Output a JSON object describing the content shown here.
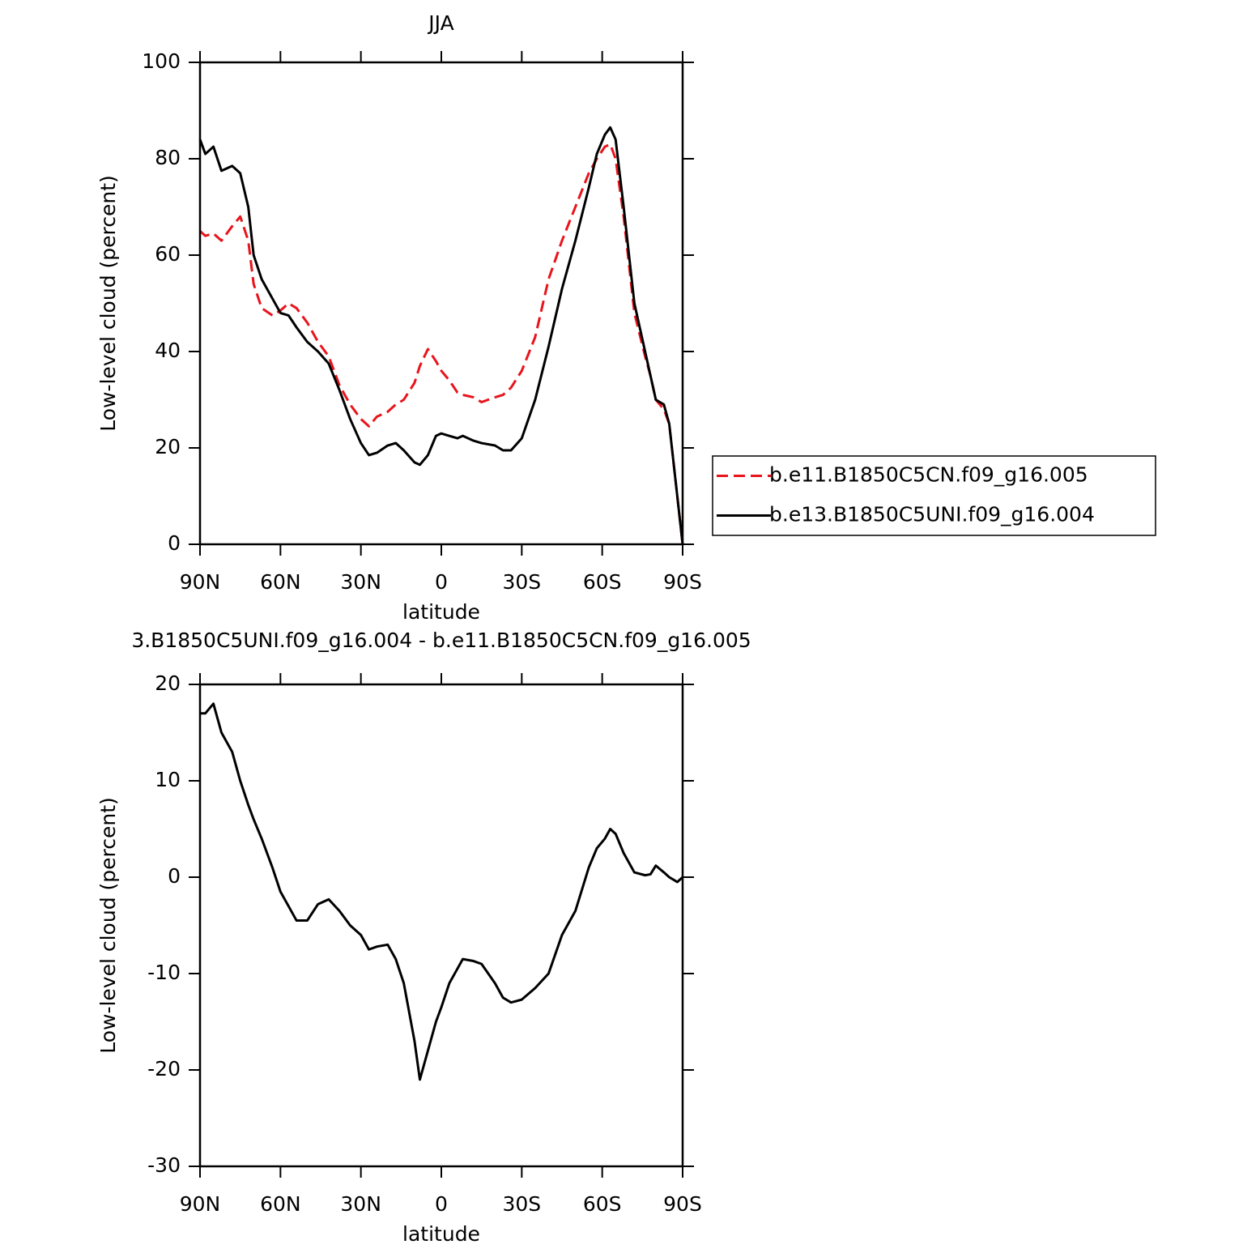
{
  "chart_data": [
    {
      "type": "line",
      "title": "JJA",
      "xlabel": "latitude",
      "ylabel": "Low-level cloud (percent)",
      "x": [
        90,
        88,
        85,
        82,
        78,
        75,
        72,
        70,
        67,
        63,
        60,
        57,
        54,
        50,
        46,
        42,
        38,
        34,
        30,
        27,
        24,
        20,
        17,
        14,
        10,
        8,
        5,
        2,
        0,
        -3,
        -6,
        -8,
        -12,
        -15,
        -20,
        -23,
        -26,
        -30,
        -35,
        -40,
        -45,
        -50,
        -55,
        -58,
        -61,
        -63,
        -65,
        -68,
        -72,
        -76,
        -78,
        -80,
        -83,
        -85,
        -88,
        -90
      ],
      "series": [
        {
          "name": "b.e11.B1850C5CN.f09_g16.005",
          "color": "#e8141c",
          "linestyle": "dashed",
          "values": [
            65,
            64,
            64.5,
            63,
            66,
            68,
            63,
            54,
            49,
            47.5,
            48.5,
            50,
            49,
            46,
            42,
            39,
            33,
            29,
            26,
            24.5,
            26.5,
            27.5,
            29,
            30,
            33.5,
            37,
            40.5,
            38,
            36,
            34,
            31.5,
            31,
            30.5,
            29.5,
            30.5,
            31,
            32.5,
            36,
            43,
            55,
            63,
            70,
            77,
            80,
            82.5,
            83,
            80,
            68,
            48,
            39,
            35,
            30,
            28,
            25,
            10,
            0
          ]
        },
        {
          "name": "b.e13.B1850C5UNI.f09_g16.004",
          "color": "#000000",
          "linestyle": "solid",
          "values": [
            84,
            81,
            82.5,
            77.5,
            78.5,
            77,
            70,
            60,
            55,
            51,
            48,
            47.5,
            45,
            42,
            40,
            37.5,
            32,
            26,
            21,
            18.5,
            19,
            20.5,
            21,
            19.5,
            17,
            16.5,
            18.5,
            22.5,
            23,
            22.5,
            22,
            22.5,
            21.5,
            21,
            20.5,
            19.5,
            19.5,
            22,
            30,
            41,
            53,
            63,
            74,
            81,
            85,
            86.5,
            84,
            70,
            50,
            40,
            35,
            30,
            29,
            25,
            10,
            0
          ]
        }
      ],
      "xlim": [
        90,
        -90
      ],
      "xticks": [
        {
          "value": 90,
          "label": "90N"
        },
        {
          "value": 60,
          "label": "60N"
        },
        {
          "value": 30,
          "label": "30N"
        },
        0,
        {
          "value": -30,
          "label": "30S"
        },
        {
          "value": -60,
          "label": "60S"
        },
        {
          "value": -90,
          "label": "90S"
        }
      ],
      "ylim": [
        0,
        100
      ],
      "yticks": [
        0,
        20,
        40,
        60,
        80,
        100
      ],
      "legend": "right"
    },
    {
      "type": "line",
      "title": "3.B1850C5UNI.f09_g16.004 - b.e11.B1850C5CN.f09_g16.005",
      "xlabel": "latitude",
      "ylabel": "Low-level cloud (percent)",
      "x": [
        90,
        88,
        85,
        82,
        78,
        75,
        72,
        70,
        67,
        63,
        60,
        57,
        54,
        50,
        46,
        42,
        38,
        34,
        30,
        27,
        24,
        20,
        17,
        14,
        10,
        8,
        5,
        2,
        0,
        -3,
        -6,
        -8,
        -12,
        -15,
        -20,
        -23,
        -26,
        -30,
        -35,
        -40,
        -45,
        -50,
        -55,
        -58,
        -61,
        -63,
        -65,
        -68,
        -72,
        -76,
        -78,
        -80,
        -83,
        -85,
        -88,
        -90
      ],
      "color": "#000000",
      "values": [
        17,
        17,
        18,
        15,
        13,
        10,
        7.5,
        6,
        4,
        1,
        -1.5,
        -3,
        -4.5,
        -4.5,
        -2.8,
        -2.3,
        -3.5,
        -5,
        -6,
        -7.5,
        -7.2,
        -7,
        -8.5,
        -11,
        -17,
        -21,
        -18,
        -15,
        -13.5,
        -11,
        -9.5,
        -8.5,
        -8.7,
        -9,
        -11,
        -12.5,
        -13,
        -12.7,
        -11.5,
        -10,
        -6,
        -3.5,
        1,
        3,
        4,
        5,
        4.5,
        2.5,
        0.5,
        0.2,
        0.3,
        1.2,
        0.5,
        0,
        -0.5,
        0
      ],
      "xlim": [
        90,
        -90
      ],
      "xticks": [
        {
          "value": 90,
          "label": "90N"
        },
        {
          "value": 60,
          "label": "60N"
        },
        {
          "value": 30,
          "label": "30N"
        },
        0,
        {
          "value": -30,
          "label": "30S"
        },
        {
          "value": -60,
          "label": "60S"
        },
        {
          "value": -90,
          "label": "90S"
        }
      ],
      "ylim": [
        -30,
        20
      ],
      "yticks": [
        -30,
        -20,
        -10,
        0,
        10,
        20
      ]
    }
  ]
}
